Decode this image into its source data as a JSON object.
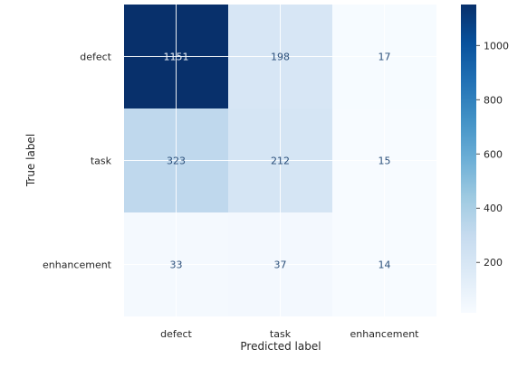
{
  "chart_data": {
    "type": "heatmap",
    "title": "",
    "xlabel": "Predicted label",
    "ylabel": "True label",
    "x_categories": [
      "defect",
      "task",
      "enhancement"
    ],
    "y_categories": [
      "defect",
      "task",
      "enhancement"
    ],
    "values": [
      [
        1151,
        198,
        17
      ],
      [
        323,
        212,
        15
      ],
      [
        33,
        37,
        14
      ]
    ],
    "colorbar": {
      "colormap": "Blues",
      "min": 14,
      "max": 1151,
      "ticks": [
        200,
        400,
        600,
        800,
        1000
      ],
      "tick_labels": [
        "200",
        "400",
        "600",
        "800",
        "1000"
      ]
    },
    "grid": true,
    "legend": "colorbar-right"
  }
}
